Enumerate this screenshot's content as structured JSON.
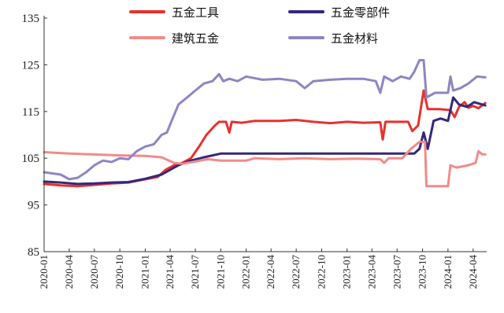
{
  "chart_data": {
    "type": "line",
    "title": "",
    "xlabel": "",
    "ylabel": "",
    "ylim": [
      85,
      135
    ],
    "yticks": [
      "85",
      "95",
      "105",
      "115",
      "125",
      "135"
    ],
    "xticks": [
      "2020-01",
      "2020-04",
      "2020-07",
      "2020-10",
      "2021-01",
      "2021-04",
      "2021-07",
      "2021-10",
      "2022-01",
      "2022-04",
      "2022-07",
      "2022-10",
      "2023-01",
      "2023-04",
      "2023-07",
      "2023-10",
      "2024-01",
      "2024-04"
    ],
    "grid": false,
    "legend_position": "top",
    "series": [
      {
        "name": "五金工具",
        "color": "#e8312e",
        "points": [
          [
            "2020-01-01",
            99.5
          ],
          [
            "2020-03-01",
            99.2
          ],
          [
            "2020-05-01",
            99.0
          ],
          [
            "2020-07-01",
            99.3
          ],
          [
            "2020-09-01",
            99.6
          ],
          [
            "2020-11-01",
            99.8
          ],
          [
            "2021-01-01",
            100.5
          ],
          [
            "2021-02-15",
            101.0
          ],
          [
            "2021-03-15",
            102.5
          ],
          [
            "2021-04-15",
            103.5
          ],
          [
            "2021-05-15",
            104.0
          ],
          [
            "2021-06-15",
            105.0
          ],
          [
            "2021-07-15",
            107.5
          ],
          [
            "2021-08-10",
            110.0
          ],
          [
            "2021-09-10",
            112.0
          ],
          [
            "2021-09-25",
            112.8
          ],
          [
            "2021-10-20",
            112.8
          ],
          [
            "2021-11-01",
            110.5
          ],
          [
            "2021-11-10",
            112.8
          ],
          [
            "2021-12-15",
            112.6
          ],
          [
            "2022-02-01",
            113.0
          ],
          [
            "2022-05-01",
            113.0
          ],
          [
            "2022-07-01",
            113.2
          ],
          [
            "2022-09-01",
            112.8
          ],
          [
            "2022-11-01",
            112.5
          ],
          [
            "2023-01-01",
            112.8
          ],
          [
            "2023-03-01",
            112.6
          ],
          [
            "2023-05-01",
            112.7
          ],
          [
            "2023-05-10",
            109.0
          ],
          [
            "2023-05-20",
            112.8
          ],
          [
            "2023-07-01",
            112.8
          ],
          [
            "2023-08-10",
            112.8
          ],
          [
            "2023-08-25",
            110.8
          ],
          [
            "2023-09-15",
            112.0
          ],
          [
            "2023-10-05",
            119.5
          ],
          [
            "2023-10-20",
            115.5
          ],
          [
            "2023-12-01",
            115.5
          ],
          [
            "2024-01-10",
            115.3
          ],
          [
            "2024-01-25",
            113.8
          ],
          [
            "2024-02-10",
            116.0
          ],
          [
            "2024-03-01",
            117.0
          ],
          [
            "2024-03-15",
            115.8
          ],
          [
            "2024-04-01",
            116.2
          ],
          [
            "2024-04-20",
            115.7
          ],
          [
            "2024-05-15",
            116.8
          ]
        ]
      },
      {
        "name": "五金零部件",
        "color": "#34287a",
        "points": [
          [
            "2020-01-01",
            100.0
          ],
          [
            "2020-03-01",
            99.8
          ],
          [
            "2020-05-01",
            99.5
          ],
          [
            "2020-07-01",
            99.6
          ],
          [
            "2020-09-01",
            99.8
          ],
          [
            "2020-11-01",
            99.9
          ],
          [
            "2021-01-01",
            100.6
          ],
          [
            "2021-03-01",
            101.5
          ],
          [
            "2021-05-01",
            103.5
          ],
          [
            "2021-06-15",
            104.5
          ],
          [
            "2021-08-01",
            105.2
          ],
          [
            "2021-10-01",
            106.0
          ],
          [
            "2022-01-01",
            106.0
          ],
          [
            "2022-06-01",
            106.0
          ],
          [
            "2023-01-01",
            106.0
          ],
          [
            "2023-06-01",
            106.0
          ],
          [
            "2023-09-01",
            106.0
          ],
          [
            "2023-09-20",
            107.0
          ],
          [
            "2023-10-05",
            110.5
          ],
          [
            "2023-10-20",
            107.0
          ],
          [
            "2023-11-10",
            113.0
          ],
          [
            "2023-12-05",
            113.5
          ],
          [
            "2024-01-01",
            113.0
          ],
          [
            "2024-01-20",
            118.0
          ],
          [
            "2024-02-10",
            116.5
          ],
          [
            "2024-03-10",
            116.0
          ],
          [
            "2024-04-05",
            117.0
          ],
          [
            "2024-05-15",
            116.3
          ]
        ]
      },
      {
        "name": "建筑五金",
        "color": "#f28a8a",
        "points": [
          [
            "2020-01-01",
            106.3
          ],
          [
            "2020-04-01",
            106.0
          ],
          [
            "2020-07-01",
            105.8
          ],
          [
            "2020-10-01",
            105.6
          ],
          [
            "2021-01-01",
            105.5
          ],
          [
            "2021-03-01",
            105.2
          ],
          [
            "2021-04-15",
            104.0
          ],
          [
            "2021-05-15",
            103.8
          ],
          [
            "2021-07-01",
            104.3
          ],
          [
            "2021-08-15",
            104.8
          ],
          [
            "2021-10-01",
            104.5
          ],
          [
            "2022-01-01",
            104.5
          ],
          [
            "2022-02-01",
            105.0
          ],
          [
            "2022-05-01",
            104.8
          ],
          [
            "2022-08-01",
            105.0
          ],
          [
            "2022-11-01",
            104.8
          ],
          [
            "2023-02-01",
            104.9
          ],
          [
            "2023-05-01",
            104.8
          ],
          [
            "2023-05-15",
            104.0
          ],
          [
            "2023-06-01",
            105.0
          ],
          [
            "2023-07-20",
            105.0
          ],
          [
            "2023-08-20",
            107.0
          ],
          [
            "2023-09-20",
            108.5
          ],
          [
            "2023-10-10",
            108.5
          ],
          [
            "2023-10-15",
            99.0
          ],
          [
            "2023-12-15",
            99.0
          ],
          [
            "2024-01-01",
            99.0
          ],
          [
            "2024-01-10",
            103.5
          ],
          [
            "2024-02-01",
            103.0
          ],
          [
            "2024-03-15",
            103.5
          ],
          [
            "2024-04-10",
            104.0
          ],
          [
            "2024-04-20",
            106.5
          ],
          [
            "2024-05-05",
            105.8
          ],
          [
            "2024-05-15",
            105.8
          ]
        ]
      },
      {
        "name": "五金材料",
        "color": "#8c86c4",
        "points": [
          [
            "2020-01-01",
            102.0
          ],
          [
            "2020-03-01",
            101.5
          ],
          [
            "2020-04-01",
            100.5
          ],
          [
            "2020-05-01",
            100.8
          ],
          [
            "2020-06-01",
            102.0
          ],
          [
            "2020-07-01",
            103.5
          ],
          [
            "2020-08-01",
            104.5
          ],
          [
            "2020-09-01",
            104.2
          ],
          [
            "2020-10-01",
            105.0
          ],
          [
            "2020-11-01",
            104.8
          ],
          [
            "2020-12-01",
            106.5
          ],
          [
            "2021-01-01",
            107.5
          ],
          [
            "2021-02-01",
            108.0
          ],
          [
            "2021-03-01",
            110.0
          ],
          [
            "2021-03-20",
            110.5
          ],
          [
            "2021-04-10",
            113.5
          ],
          [
            "2021-05-01",
            116.5
          ],
          [
            "2021-06-01",
            118.0
          ],
          [
            "2021-07-01",
            119.5
          ],
          [
            "2021-08-01",
            121.0
          ],
          [
            "2021-09-01",
            121.5
          ],
          [
            "2021-09-25",
            123.0
          ],
          [
            "2021-10-10",
            121.5
          ],
          [
            "2021-11-01",
            122.0
          ],
          [
            "2021-12-01",
            121.5
          ],
          [
            "2022-01-01",
            122.5
          ],
          [
            "2022-03-01",
            121.8
          ],
          [
            "2022-05-01",
            122.0
          ],
          [
            "2022-07-01",
            121.5
          ],
          [
            "2022-08-01",
            120.0
          ],
          [
            "2022-09-01",
            121.5
          ],
          [
            "2022-11-01",
            121.8
          ],
          [
            "2023-01-01",
            122.0
          ],
          [
            "2023-03-01",
            122.0
          ],
          [
            "2023-04-15",
            121.5
          ],
          [
            "2023-05-01",
            119.0
          ],
          [
            "2023-05-15",
            122.5
          ],
          [
            "2023-06-15",
            121.5
          ],
          [
            "2023-07-15",
            122.5
          ],
          [
            "2023-08-15",
            122.0
          ],
          [
            "2023-09-01",
            123.5
          ],
          [
            "2023-09-20",
            126.0
          ],
          [
            "2023-10-05",
            126.0
          ],
          [
            "2023-10-15",
            118.0
          ],
          [
            "2023-11-15",
            119.0
          ],
          [
            "2023-12-15",
            119.0
          ],
          [
            "2024-01-01",
            119.0
          ],
          [
            "2024-01-10",
            122.5
          ],
          [
            "2024-01-20",
            119.5
          ],
          [
            "2024-02-15",
            120.0
          ],
          [
            "2024-03-15",
            121.0
          ],
          [
            "2024-04-15",
            122.5
          ],
          [
            "2024-05-15",
            122.3
          ]
        ]
      }
    ]
  }
}
